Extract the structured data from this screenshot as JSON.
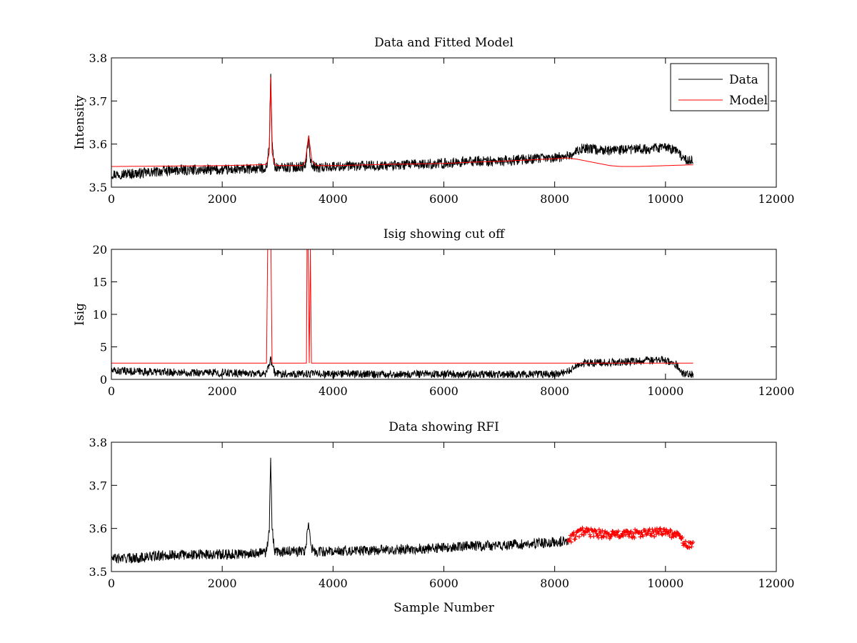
{
  "chart_data": [
    {
      "type": "line",
      "title": "Data and Fitted Model",
      "xlabel": "",
      "ylabel": "Intensity",
      "xlim": [
        0,
        12000
      ],
      "ylim": [
        3.5,
        3.8
      ],
      "xticks": [
        "0",
        "2000",
        "4000",
        "6000",
        "8000",
        "10000",
        "12000"
      ],
      "yticks": [
        "3.5",
        "3.6",
        "3.7",
        "3.8"
      ],
      "grid": false,
      "legend": {
        "placement": "top-right",
        "entries": [
          "Data",
          "Model"
        ]
      },
      "series": [
        {
          "name": "Data",
          "color": "#000000",
          "noise_amplitude": 0.012,
          "x": [
            0,
            500,
            1000,
            1500,
            2000,
            2500,
            2800,
            2850,
            2875,
            2900,
            2950,
            3000,
            3500,
            3560,
            3600,
            3700,
            4000,
            5000,
            6000,
            6500,
            7000,
            7500,
            8000,
            8300,
            8500,
            9000,
            9500,
            10000,
            10200,
            10350,
            10500
          ],
          "values": [
            3.53,
            3.532,
            3.538,
            3.54,
            3.54,
            3.542,
            3.545,
            3.6,
            3.765,
            3.6,
            3.545,
            3.545,
            3.548,
            3.615,
            3.555,
            3.545,
            3.548,
            3.55,
            3.555,
            3.56,
            3.56,
            3.565,
            3.568,
            3.575,
            3.59,
            3.585,
            3.588,
            3.592,
            3.585,
            3.565,
            3.56
          ]
        },
        {
          "name": "Model",
          "color": "#ff0000",
          "x": [
            0,
            1000,
            2000,
            2700,
            2800,
            2850,
            2875,
            2900,
            2950,
            3000,
            3450,
            3500,
            3560,
            3620,
            3700,
            4000,
            5000,
            6000,
            6500,
            7000,
            7500,
            8000,
            8200,
            8400,
            8600,
            8800,
            9000,
            9200,
            9500,
            10000,
            10500
          ],
          "values": [
            3.548,
            3.549,
            3.55,
            3.552,
            3.553,
            3.58,
            3.755,
            3.58,
            3.552,
            3.55,
            3.55,
            3.56,
            3.62,
            3.56,
            3.55,
            3.55,
            3.553,
            3.555,
            3.558,
            3.56,
            3.563,
            3.566,
            3.568,
            3.565,
            3.56,
            3.555,
            3.55,
            3.548,
            3.548,
            3.55,
            3.552
          ]
        }
      ]
    },
    {
      "type": "line",
      "title": "Isig showing cut off",
      "xlabel": "",
      "ylabel": "Isig",
      "xlim": [
        0,
        12000
      ],
      "ylim": [
        0,
        20
      ],
      "xticks": [
        "0",
        "2000",
        "4000",
        "6000",
        "8000",
        "10000",
        "12000"
      ],
      "yticks": [
        "0",
        "5",
        "10",
        "15",
        "20"
      ],
      "grid": false,
      "series": [
        {
          "color": "#000000",
          "noise_amplitude": 0.6,
          "x": [
            0,
            500,
            1000,
            2000,
            2800,
            2875,
            2950,
            3000,
            4000,
            5000,
            6000,
            7000,
            8000,
            8250,
            8500,
            9000,
            9500,
            10000,
            10200,
            10300,
            10500
          ],
          "values": [
            1.3,
            1.2,
            1.1,
            1.0,
            0.9,
            3.0,
            0.9,
            0.9,
            0.8,
            0.8,
            0.8,
            0.8,
            0.8,
            1.2,
            2.5,
            2.6,
            2.8,
            3.0,
            2.2,
            1.0,
            0.8
          ]
        },
        {
          "color": "#ff0000",
          "step": true,
          "x": [
            0,
            2800,
            2820,
            2880,
            2900,
            3520,
            3530,
            3550,
            3570,
            3590,
            3610,
            10500
          ],
          "values": [
            2.5,
            2.5,
            20,
            20,
            2.5,
            2.5,
            20,
            20,
            2.5,
            20,
            2.5,
            2.5
          ]
        }
      ]
    },
    {
      "type": "line",
      "title": "Data showing RFI",
      "xlabel": "Sample Number",
      "ylabel": "",
      "xlim": [
        0,
        12000
      ],
      "ylim": [
        3.5,
        3.8
      ],
      "xticks": [
        "0",
        "2000",
        "4000",
        "6000",
        "8000",
        "10000",
        "12000"
      ],
      "yticks": [
        "3.5",
        "3.6",
        "3.7",
        "3.8"
      ],
      "grid": false,
      "series": [
        {
          "color": "#000000",
          "noise_amplitude": 0.012,
          "x": [
            0,
            500,
            1000,
            1500,
            2000,
            2500,
            2800,
            2850,
            2875,
            2900,
            2950,
            3000,
            3500,
            3560,
            3600,
            3700,
            4000,
            5000,
            6000,
            6500,
            7000,
            7500,
            8000,
            8250
          ],
          "values": [
            3.53,
            3.532,
            3.538,
            3.54,
            3.54,
            3.542,
            3.545,
            3.6,
            3.765,
            3.6,
            3.545,
            3.545,
            3.548,
            3.615,
            3.555,
            3.545,
            3.548,
            3.55,
            3.555,
            3.56,
            3.56,
            3.565,
            3.568,
            3.572
          ]
        },
        {
          "color": "#ff0000",
          "marker": "+",
          "noise_amplitude": 0.01,
          "x": [
            8250,
            8500,
            9000,
            9500,
            10000,
            10200,
            10350,
            10500
          ],
          "values": [
            3.575,
            3.592,
            3.585,
            3.588,
            3.592,
            3.585,
            3.565,
            3.56
          ]
        }
      ]
    }
  ]
}
